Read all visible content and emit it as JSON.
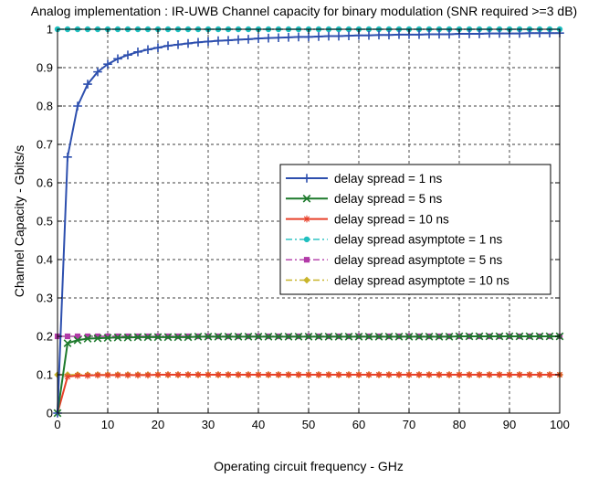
{
  "chart_data": {
    "type": "line",
    "title": "Analog implementation : IR-UWB Channel capacity for binary modulation (SNR required >=3 dB)",
    "xlabel": "Operating circuit frequency - GHz",
    "ylabel": "Channel Capacity - Gbits/s",
    "xlim": [
      0,
      100
    ],
    "ylim": [
      0,
      1
    ],
    "xticks": [
      "0",
      "10",
      "20",
      "30",
      "40",
      "50",
      "60",
      "70",
      "80",
      "90",
      "100"
    ],
    "yticks": [
      "0",
      "0.1",
      "0.2",
      "0.3",
      "0.4",
      "0.5",
      "0.6",
      "0.7",
      "0.8",
      "0.9",
      "1"
    ],
    "grid": true,
    "legend_position": "center-right",
    "x": [
      0,
      2,
      4,
      6,
      8,
      10,
      12,
      14,
      16,
      18,
      20,
      22,
      24,
      26,
      28,
      30,
      32,
      34,
      36,
      38,
      40,
      42,
      44,
      46,
      48,
      50,
      52,
      54,
      56,
      58,
      60,
      62,
      64,
      66,
      68,
      70,
      72,
      74,
      76,
      78,
      80,
      82,
      84,
      86,
      88,
      90,
      92,
      94,
      96,
      98,
      100
    ],
    "series": [
      {
        "name": "delay spread = 1 ns",
        "color": "#2d4fae",
        "marker": "plus",
        "dash": "solid",
        "values": [
          0,
          0.667,
          0.8,
          0.857,
          0.889,
          0.909,
          0.923,
          0.933,
          0.941,
          0.947,
          0.952,
          0.957,
          0.96,
          0.963,
          0.966,
          0.968,
          0.97,
          0.971,
          0.973,
          0.974,
          0.976,
          0.977,
          0.978,
          0.979,
          0.98,
          0.98,
          0.981,
          0.982,
          0.982,
          0.983,
          0.984,
          0.984,
          0.985,
          0.985,
          0.986,
          0.986,
          0.986,
          0.987,
          0.987,
          0.987,
          0.988,
          0.988,
          0.988,
          0.989,
          0.989,
          0.989,
          0.989,
          0.99,
          0.99,
          0.99,
          0.99
        ]
      },
      {
        "name": "delay spread = 5 ns",
        "color": "#1d7a2c",
        "marker": "x",
        "dash": "solid",
        "values": [
          0,
          0.182,
          0.19,
          0.194,
          0.195,
          0.196,
          0.197,
          0.197,
          0.198,
          0.198,
          0.198,
          0.198,
          0.198,
          0.198,
          0.199,
          0.199,
          0.199,
          0.199,
          0.199,
          0.199,
          0.199,
          0.199,
          0.199,
          0.199,
          0.199,
          0.199,
          0.199,
          0.199,
          0.199,
          0.199,
          0.199,
          0.199,
          0.199,
          0.199,
          0.199,
          0.199,
          0.199,
          0.199,
          0.199,
          0.199,
          0.2,
          0.2,
          0.2,
          0.2,
          0.2,
          0.2,
          0.2,
          0.2,
          0.2,
          0.2,
          0.2
        ]
      },
      {
        "name": "delay spread = 10 ns",
        "color": "#e8402a",
        "marker": "star",
        "dash": "solid",
        "values": [
          0,
          0.095,
          0.098,
          0.098,
          0.099,
          0.099,
          0.099,
          0.099,
          0.099,
          0.099,
          0.1,
          0.1,
          0.1,
          0.1,
          0.1,
          0.1,
          0.1,
          0.1,
          0.1,
          0.1,
          0.1,
          0.1,
          0.1,
          0.1,
          0.1,
          0.1,
          0.1,
          0.1,
          0.1,
          0.1,
          0.1,
          0.1,
          0.1,
          0.1,
          0.1,
          0.1,
          0.1,
          0.1,
          0.1,
          0.1,
          0.1,
          0.1,
          0.1,
          0.1,
          0.1,
          0.1,
          0.1,
          0.1,
          0.1,
          0.1,
          0.1
        ]
      },
      {
        "name": "delay spread asymptote = 1 ns",
        "color": "#1fbfbf",
        "marker": "circle",
        "dash": "dashdot",
        "values": [
          1,
          1,
          1,
          1,
          1,
          1,
          1,
          1,
          1,
          1,
          1,
          1,
          1,
          1,
          1,
          1,
          1,
          1,
          1,
          1,
          1,
          1,
          1,
          1,
          1,
          1,
          1,
          1,
          1,
          1,
          1,
          1,
          1,
          1,
          1,
          1,
          1,
          1,
          1,
          1,
          1,
          1,
          1,
          1,
          1,
          1,
          1,
          1,
          1,
          1,
          1
        ]
      },
      {
        "name": "delay spread asymptote = 5 ns",
        "color": "#b23aa8",
        "marker": "square",
        "dash": "dashdot",
        "values": [
          0.2,
          0.2,
          0.2,
          0.2,
          0.2,
          0.2,
          0.2,
          0.2,
          0.2,
          0.2,
          0.2,
          0.2,
          0.2,
          0.2,
          0.2,
          0.2,
          0.2,
          0.2,
          0.2,
          0.2,
          0.2,
          0.2,
          0.2,
          0.2,
          0.2,
          0.2,
          0.2,
          0.2,
          0.2,
          0.2,
          0.2,
          0.2,
          0.2,
          0.2,
          0.2,
          0.2,
          0.2,
          0.2,
          0.2,
          0.2,
          0.2,
          0.2,
          0.2,
          0.2,
          0.2,
          0.2,
          0.2,
          0.2,
          0.2,
          0.2,
          0.2
        ]
      },
      {
        "name": "delay spread asymptote = 10 ns",
        "color": "#c8b42a",
        "marker": "diamond",
        "dash": "dashdot",
        "values": [
          0.1,
          0.1,
          0.1,
          0.1,
          0.1,
          0.1,
          0.1,
          0.1,
          0.1,
          0.1,
          0.1,
          0.1,
          0.1,
          0.1,
          0.1,
          0.1,
          0.1,
          0.1,
          0.1,
          0.1,
          0.1,
          0.1,
          0.1,
          0.1,
          0.1,
          0.1,
          0.1,
          0.1,
          0.1,
          0.1,
          0.1,
          0.1,
          0.1,
          0.1,
          0.1,
          0.1,
          0.1,
          0.1,
          0.1,
          0.1,
          0.1,
          0.1,
          0.1,
          0.1,
          0.1,
          0.1,
          0.1,
          0.1,
          0.1,
          0.1,
          0.1
        ]
      }
    ]
  }
}
